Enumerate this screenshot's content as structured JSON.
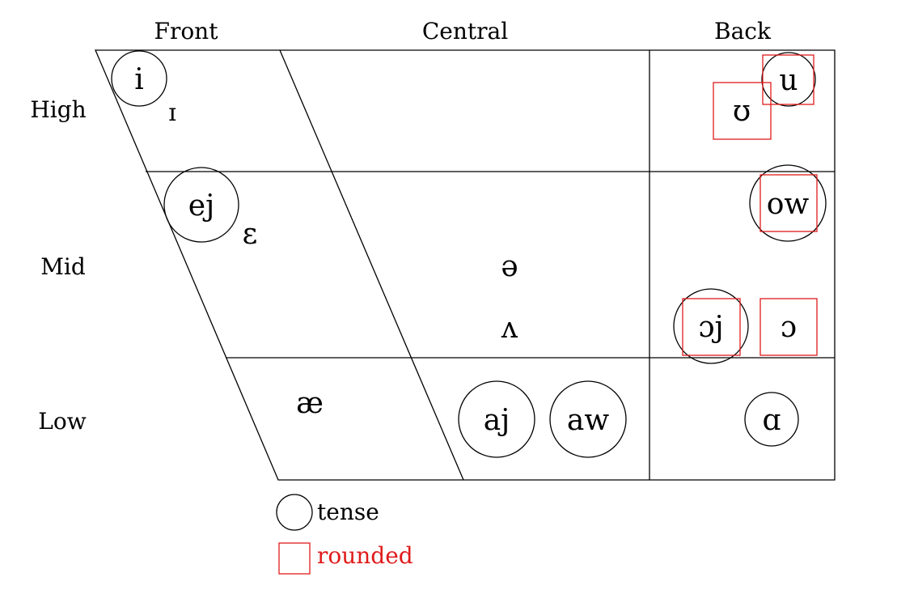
{
  "columns": {
    "front": "Front",
    "central": "Central",
    "back": "Back"
  },
  "rows": {
    "high": "High",
    "mid": "Mid",
    "low": "Low"
  },
  "vowels": {
    "i": "i",
    "small_i": "ɪ",
    "u": "u",
    "upsilon": "ʊ",
    "ej": "ej",
    "epsilon": "ɛ",
    "ow": "ow",
    "schwa": "ə",
    "wedge": "ʌ",
    "oj": "ɔj",
    "open_o": "ɔ",
    "ae": "æ",
    "aj": "aj",
    "aw": "aw",
    "script_a": "ɑ"
  },
  "legend": {
    "tense": "tense",
    "rounded": "rounded"
  },
  "colors": {
    "rounded": "#e01b1b",
    "lines": "#000000"
  }
}
